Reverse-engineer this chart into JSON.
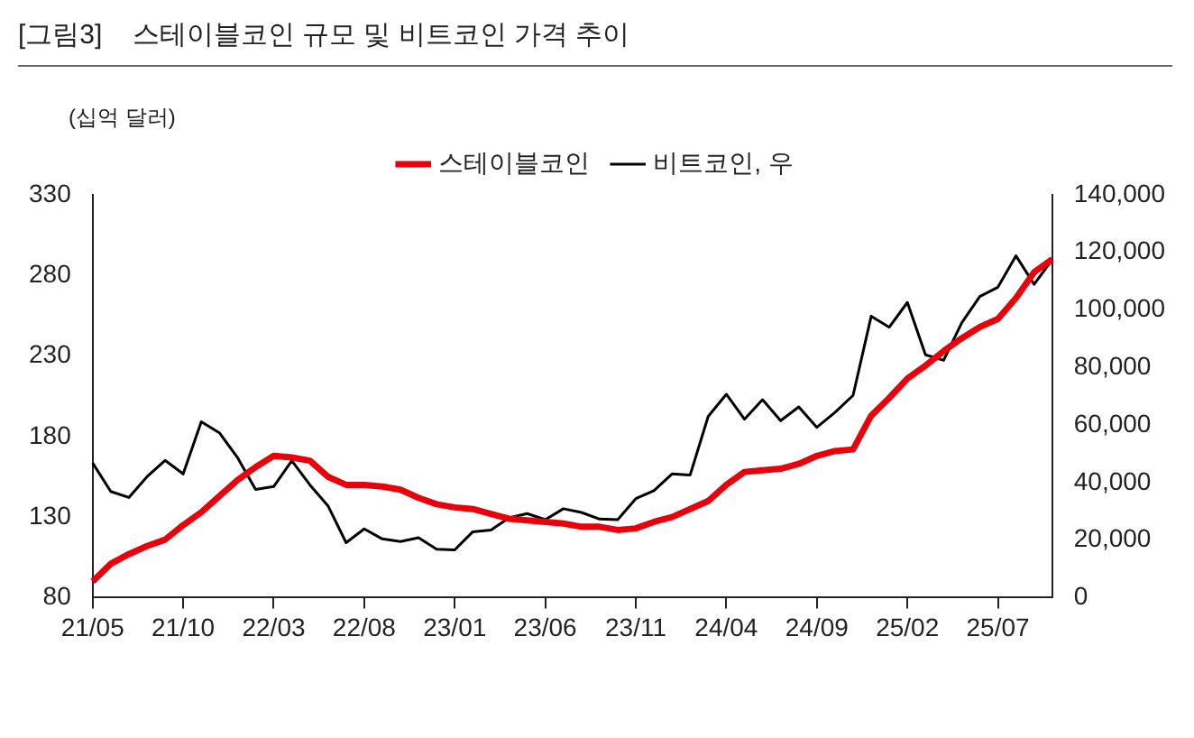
{
  "chart_data": {
    "type": "line",
    "title": "[그림3]    스테이블코인 규모 및 비트코인 가격 추이",
    "ylabel": "(십억 달러)",
    "categories": [
      "21/05",
      null,
      null,
      null,
      null,
      "21/10",
      null,
      null,
      null,
      null,
      "22/03",
      null,
      null,
      null,
      null,
      "22/08",
      null,
      null,
      null,
      null,
      "23/01",
      null,
      null,
      null,
      null,
      "23/06",
      null,
      null,
      null,
      null,
      "23/11",
      null,
      null,
      null,
      null,
      "24/04",
      null,
      null,
      null,
      null,
      "24/09",
      null,
      null,
      null,
      null,
      "25/02",
      null,
      null,
      null,
      null,
      "25/07",
      null,
      null,
      null
    ],
    "series": [
      {
        "name": "스테이블코인",
        "color": "#e8000b",
        "values": [
          90,
          101,
          107,
          112,
          116,
          125,
          133,
          143,
          153,
          161,
          168,
          167,
          165,
          155,
          150,
          150,
          149,
          147,
          142,
          138,
          136,
          135,
          132,
          129,
          128,
          127,
          126,
          124,
          124,
          122,
          123,
          127,
          130,
          135,
          140,
          150,
          158,
          159,
          160,
          163,
          168,
          171,
          172,
          193,
          204,
          216,
          224,
          233,
          241,
          248,
          253,
          266,
          282,
          290
        ]
      },
      {
        "name": "비트코인, 우",
        "color": "#000000",
        "axis": "y2",
        "values": [
          46800,
          36900,
          34800,
          42000,
          47700,
          43000,
          61100,
          57300,
          48700,
          37600,
          38600,
          47600,
          39200,
          31900,
          19100,
          23900,
          20400,
          19500,
          20800,
          16800,
          16600,
          22900,
          23500,
          27700,
          29200,
          27100,
          30900,
          29600,
          27300,
          27100,
          34400,
          37200,
          43000,
          42600,
          63000,
          70700,
          62000,
          68800,
          61500,
          66300,
          59200,
          64400,
          70300,
          97800,
          94000,
          102600,
          84400,
          82500,
          95500,
          104700,
          107900,
          118800,
          108900,
          117500
        ]
      }
    ],
    "ylim": [
      80,
      330
    ],
    "yticks": [
      80,
      130,
      180,
      230,
      280,
      330
    ],
    "y2lim": [
      0,
      140000
    ],
    "y2ticks": [
      {
        "value": 0,
        "label": "0"
      },
      {
        "value": 20000,
        "label": "20,000"
      },
      {
        "value": 40000,
        "label": "40,000"
      },
      {
        "value": 60000,
        "label": "60,000"
      },
      {
        "value": 80000,
        "label": "80,000"
      },
      {
        "value": 100000,
        "label": "100,000"
      },
      {
        "value": 120000,
        "label": "120,000"
      },
      {
        "value": 140000,
        "label": "140,000"
      }
    ],
    "grid": false,
    "legend": "top",
    "marker": "none",
    "line_style": "solid"
  }
}
